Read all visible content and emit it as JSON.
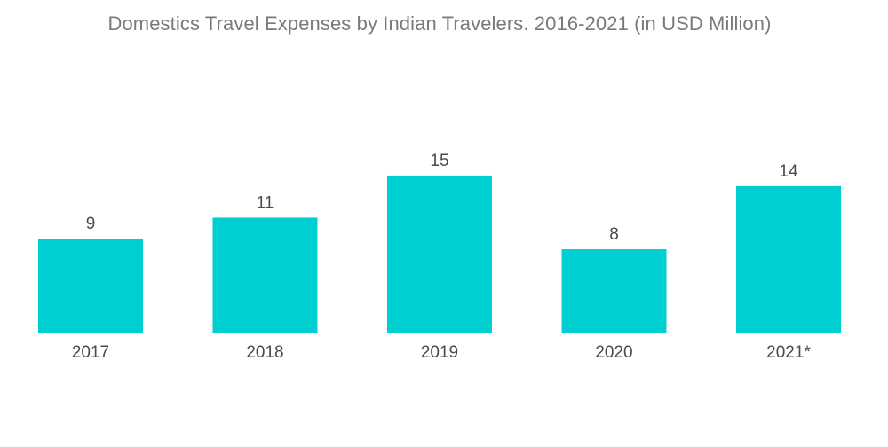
{
  "chart_data": {
    "type": "bar",
    "title": "Domestics Travel Expenses by Indian Travelers. 2016-2021 (in USD Million)",
    "categories": [
      "2017",
      "2018",
      "2019",
      "2020",
      "2021*"
    ],
    "values": [
      9,
      11,
      15,
      8,
      14
    ],
    "value_labels": [
      "9",
      "11",
      "15",
      "8",
      "14"
    ],
    "xlabel": "",
    "ylabel": "",
    "ylim": [
      0,
      15
    ],
    "grid": false,
    "legend": "none",
    "bar_color": "#00cfd1"
  }
}
